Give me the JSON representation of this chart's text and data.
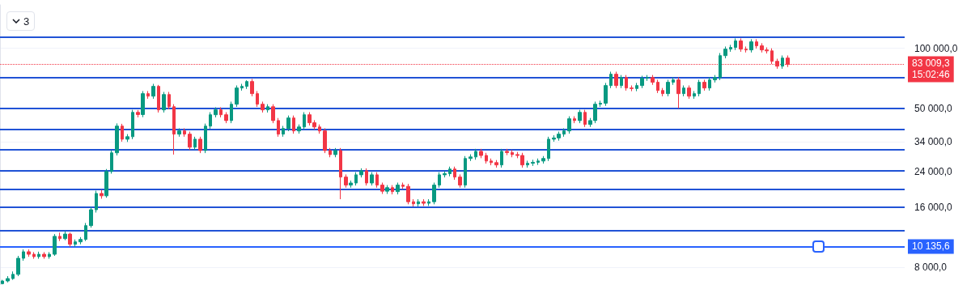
{
  "chart_data": {
    "type": "candlestick",
    "categories": [
      null,
      null,
      null,
      null,
      null,
      null,
      null,
      null,
      null,
      null,
      null,
      null,
      null,
      null,
      null,
      null,
      null,
      null,
      null,
      null,
      null,
      null,
      null,
      null,
      null,
      null,
      null,
      null,
      null,
      null,
      null,
      null,
      null,
      null,
      null,
      null,
      null,
      null,
      null,
      null,
      null,
      null,
      null,
      null,
      null,
      null,
      null,
      null,
      null,
      null,
      null,
      null,
      null,
      null,
      null,
      null,
      null,
      null,
      null,
      null,
      null,
      null,
      null,
      null,
      null,
      null,
      null,
      null,
      null,
      null,
      null,
      null,
      null,
      null,
      null,
      null,
      null,
      null,
      null,
      null,
      null,
      null,
      null,
      null,
      null,
      null,
      null,
      null,
      null,
      null,
      null,
      null,
      null,
      null,
      null,
      null,
      null,
      null,
      null,
      null,
      null,
      null,
      null,
      null,
      null,
      null,
      null,
      null,
      null,
      null,
      null,
      null,
      null,
      null,
      null,
      null,
      null,
      null,
      null,
      null,
      null,
      null,
      null,
      null,
      null,
      null,
      null,
      null,
      null,
      null,
      null,
      null,
      null,
      null,
      null,
      null,
      null,
      null,
      null,
      null,
      null,
      null,
      null,
      null,
      null,
      null,
      null,
      null,
      null,
      null,
      null,
      null,
      null,
      null,
      null,
      null,
      null,
      null,
      null,
      null,
      null,
      null,
      null,
      null,
      null,
      null,
      null,
      null,
      null,
      null,
      null,
      null,
      null,
      null
    ],
    "ohlc": [
      [
        6600,
        6900,
        6550,
        6810
      ],
      [
        6810,
        7200,
        6700,
        7000
      ],
      [
        7000,
        7600,
        6900,
        7350
      ],
      [
        7350,
        9100,
        7200,
        8850
      ],
      [
        8850,
        9800,
        8600,
        9540
      ],
      [
        9540,
        9800,
        9000,
        9270
      ],
      [
        9270,
        9500,
        8800,
        9020
      ],
      [
        9020,
        9550,
        8800,
        9270
      ],
      [
        9270,
        9500,
        8800,
        9020
      ],
      [
        9020,
        9500,
        8800,
        9270
      ],
      [
        9270,
        11700,
        9100,
        11400
      ],
      [
        11400,
        11900,
        10800,
        11100
      ],
      [
        11100,
        12100,
        10900,
        11700
      ],
      [
        11700,
        11900,
        10100,
        10400
      ],
      [
        10400,
        11000,
        10100,
        10700
      ],
      [
        10700,
        11300,
        10400,
        11000
      ],
      [
        11000,
        13300,
        10800,
        12900
      ],
      [
        12900,
        16000,
        12600,
        15500
      ],
      [
        15500,
        19300,
        15000,
        18700
      ],
      [
        18700,
        19500,
        17600,
        18200
      ],
      [
        18200,
        24800,
        17800,
        24100
      ],
      [
        24100,
        30800,
        23500,
        29900
      ],
      [
        29900,
        42000,
        29000,
        40700
      ],
      [
        40700,
        41800,
        34000,
        35000
      ],
      [
        35000,
        37100,
        33900,
        36000
      ],
      [
        36000,
        49100,
        35000,
        47700
      ],
      [
        47700,
        49000,
        45000,
        46500
      ],
      [
        46500,
        61000,
        45100,
        59200
      ],
      [
        59200,
        61000,
        55800,
        57500
      ],
      [
        57500,
        66300,
        55800,
        64400
      ],
      [
        64400,
        65500,
        47600,
        49100
      ],
      [
        49100,
        60400,
        47600,
        58600
      ],
      [
        58600,
        60400,
        49400,
        50900
      ],
      [
        50900,
        52400,
        29300,
        37100
      ],
      [
        37100,
        39700,
        36000,
        38500
      ],
      [
        38500,
        39700,
        36000,
        37100
      ],
      [
        37100,
        38200,
        30900,
        31900
      ],
      [
        31900,
        36000,
        30900,
        35000
      ],
      [
        35000,
        36000,
        29800,
        30700
      ],
      [
        30700,
        41900,
        29800,
        40700
      ],
      [
        40700,
        47800,
        39500,
        46400
      ],
      [
        46400,
        50600,
        45000,
        49100
      ],
      [
        49100,
        50600,
        45000,
        46400
      ],
      [
        46400,
        47800,
        42100,
        43400
      ],
      [
        43400,
        54000,
        42100,
        52400
      ],
      [
        52400,
        65100,
        50800,
        63200
      ],
      [
        63200,
        66300,
        61300,
        64400
      ],
      [
        64400,
        69100,
        62500,
        68100
      ],
      [
        68100,
        70100,
        57400,
        59200
      ],
      [
        59200,
        61000,
        50800,
        52400
      ],
      [
        52400,
        54000,
        47600,
        49100
      ],
      [
        49100,
        52400,
        47600,
        50900
      ],
      [
        50900,
        52400,
        42100,
        43400
      ],
      [
        43400,
        44700,
        36000,
        37100
      ],
      [
        37100,
        40800,
        36000,
        39600
      ],
      [
        39600,
        46000,
        38400,
        44700
      ],
      [
        44700,
        46000,
        37300,
        38500
      ],
      [
        38500,
        41500,
        37300,
        40300
      ],
      [
        40300,
        47800,
        39100,
        46400
      ],
      [
        46400,
        47800,
        41000,
        42300
      ],
      [
        42300,
        43600,
        39100,
        40300
      ],
      [
        40300,
        41500,
        37300,
        38500
      ],
      [
        38500,
        39700,
        29800,
        30700
      ],
      [
        30700,
        31600,
        28400,
        29300
      ],
      [
        29300,
        31600,
        28400,
        30700
      ],
      [
        30700,
        31600,
        17500,
        22600
      ],
      [
        22600,
        23300,
        20000,
        20600
      ],
      [
        20600,
        21700,
        20000,
        21100
      ],
      [
        21100,
        23900,
        20500,
        23200
      ],
      [
        23200,
        25000,
        22500,
        24300
      ],
      [
        24300,
        25000,
        20500,
        21100
      ],
      [
        21100,
        23900,
        20500,
        23200
      ],
      [
        23200,
        23900,
        20000,
        20600
      ],
      [
        20600,
        21200,
        18600,
        19200
      ],
      [
        19200,
        20600,
        18600,
        20000
      ],
      [
        20000,
        20600,
        18500,
        19100
      ],
      [
        19100,
        21200,
        18500,
        20600
      ],
      [
        20600,
        21200,
        19700,
        20300
      ],
      [
        20300,
        20900,
        16500,
        17000
      ],
      [
        17000,
        17500,
        16100,
        16600
      ],
      [
        16600,
        17500,
        16100,
        17000
      ],
      [
        17000,
        17500,
        16200,
        16700
      ],
      [
        16700,
        17500,
        16200,
        17000
      ],
      [
        17000,
        21200,
        16500,
        20600
      ],
      [
        20600,
        23900,
        20000,
        23200
      ],
      [
        23200,
        24200,
        22500,
        23500
      ],
      [
        23500,
        25500,
        22800,
        24800
      ],
      [
        24800,
        25500,
        21900,
        22600
      ],
      [
        22600,
        23300,
        20000,
        20600
      ],
      [
        20600,
        28800,
        20000,
        28000
      ],
      [
        28000,
        29400,
        27200,
        28500
      ],
      [
        28500,
        31300,
        27600,
        30400
      ],
      [
        30400,
        31300,
        28100,
        29000
      ],
      [
        29000,
        29900,
        26400,
        27200
      ],
      [
        27200,
        28000,
        25900,
        26700
      ],
      [
        26700,
        27500,
        25200,
        26000
      ],
      [
        26000,
        31300,
        25200,
        30400
      ],
      [
        30400,
        31300,
        29100,
        30000
      ],
      [
        30000,
        30900,
        28400,
        29300
      ],
      [
        29300,
        30200,
        28100,
        29000
      ],
      [
        29000,
        29900,
        25200,
        26000
      ],
      [
        26000,
        27300,
        25200,
        26500
      ],
      [
        26500,
        27600,
        25700,
        26800
      ],
      [
        26800,
        28000,
        26000,
        27200
      ],
      [
        27200,
        28800,
        26400,
        28000
      ],
      [
        28000,
        36000,
        27200,
        35000
      ],
      [
        35000,
        36600,
        34000,
        35500
      ],
      [
        35500,
        38200,
        34400,
        37100
      ],
      [
        37100,
        39700,
        36000,
        38500
      ],
      [
        38500,
        45600,
        37300,
        44300
      ],
      [
        44300,
        45600,
        42100,
        43400
      ],
      [
        43400,
        49100,
        42100,
        47700
      ],
      [
        47700,
        49100,
        40300,
        41500
      ],
      [
        41500,
        44700,
        40300,
        43400
      ],
      [
        43400,
        54000,
        42100,
        52400
      ],
      [
        52400,
        54600,
        50800,
        53000
      ],
      [
        53000,
        67000,
        51400,
        65000
      ],
      [
        65000,
        76300,
        63100,
        74100
      ],
      [
        74100,
        76300,
        63100,
        65000
      ],
      [
        65000,
        73400,
        63100,
        71300
      ],
      [
        71300,
        73400,
        61300,
        63200
      ],
      [
        63200,
        65100,
        60900,
        62800
      ],
      [
        62800,
        67000,
        60900,
        65000
      ],
      [
        65000,
        72800,
        63100,
        70700
      ],
      [
        70700,
        73400,
        68600,
        71300
      ],
      [
        71300,
        73400,
        65500,
        67500
      ],
      [
        67500,
        69500,
        59600,
        61400
      ],
      [
        61400,
        63200,
        57400,
        59200
      ],
      [
        59200,
        69500,
        57400,
        67500
      ],
      [
        67500,
        71500,
        65500,
        69400
      ],
      [
        69400,
        71500,
        50000,
        59200
      ],
      [
        59200,
        65100,
        57400,
        63200
      ],
      [
        63200,
        65100,
        55800,
        57500
      ],
      [
        57500,
        61000,
        55800,
        59200
      ],
      [
        59200,
        69500,
        57400,
        67500
      ],
      [
        67500,
        69500,
        61300,
        63200
      ],
      [
        63200,
        71500,
        61300,
        69400
      ],
      [
        69400,
        73400,
        67300,
        71300
      ],
      [
        71300,
        94600,
        69200,
        91800
      ],
      [
        91800,
        102000,
        89000,
        99000
      ],
      [
        99000,
        104000,
        96000,
        100900
      ],
      [
        100900,
        112000,
        97900,
        108800
      ],
      [
        108800,
        112000,
        96000,
        99000
      ],
      [
        99000,
        102000,
        95200,
        98100
      ],
      [
        98100,
        111000,
        95200,
        107700
      ],
      [
        107700,
        111000,
        99700,
        102800
      ],
      [
        102800,
        106000,
        95200,
        98100
      ],
      [
        98100,
        101000,
        94100,
        97000
      ],
      [
        97000,
        99900,
        83400,
        86000
      ],
      [
        86000,
        88600,
        78900,
        81300
      ],
      [
        81300,
        92000,
        78900,
        89300
      ],
      [
        89300,
        92000,
        80500,
        83009.3
      ],
      null,
      null,
      null,
      null,
      null,
      null,
      null,
      null,
      null,
      null,
      null,
      null,
      null,
      null,
      null,
      null,
      null,
      null,
      null,
      null,
      null,
      null
    ],
    "log": "y",
    "ylim": [
      6500,
      165000
    ],
    "yticks": [
      {
        "value": 8000,
        "label": "8 000,0"
      },
      {
        "value": 16000,
        "label": "16 000,0"
      },
      {
        "value": 24000,
        "label": "24 000,0"
      },
      {
        "value": 34000,
        "label": "34 000,0"
      },
      {
        "value": 50000,
        "label": "50 000,0"
      },
      {
        "value": 100000,
        "label": "100 000,0"
      }
    ],
    "grid": "y",
    "tick_labels": "y",
    "ref_lines": [
      {
        "axis": "y",
        "value": 114000,
        "color": "#2153d6"
      },
      {
        "axis": "y",
        "value": 71300,
        "color": "#2153d6"
      },
      {
        "axis": "y",
        "value": 50000,
        "color": "#2153d6"
      },
      {
        "axis": "y",
        "value": 39200,
        "color": "#2153d6"
      },
      {
        "axis": "y",
        "value": 31000,
        "color": "#2153d6"
      },
      {
        "axis": "y",
        "value": 24300,
        "color": "#2153d6"
      },
      {
        "axis": "y",
        "value": 19600,
        "color": "#2153d6"
      },
      {
        "axis": "y",
        "value": 16000,
        "color": "#2153d6"
      },
      {
        "axis": "y",
        "value": 12150,
        "color": "#2153d6"
      },
      {
        "axis": "y",
        "value": 10135.6,
        "label": "10 135,6",
        "color": "#2962ff"
      },
      {
        "axis": "y",
        "value": 83009.3,
        "label": "83 009,3",
        "color": "#f23645",
        "line_style": "dotted"
      }
    ],
    "annotations": [
      "15:02:46",
      "3"
    ]
  }
}
